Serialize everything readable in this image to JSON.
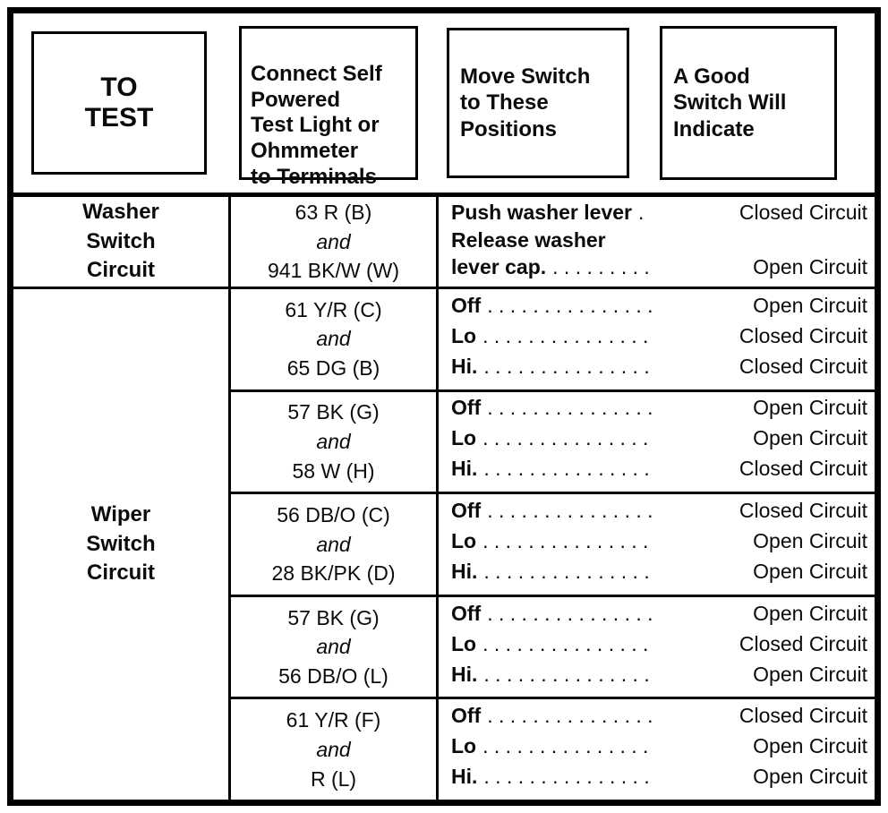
{
  "headers": {
    "to_test": "TO\nTEST",
    "terminals": "Connect Self\nPowered\nTest Light or\nOhmmeter\nto Terminals",
    "positions": "Move Switch\nto These\nPositions",
    "indicate": "A Good\nSwitch Will\nIndicate"
  },
  "washer": {
    "label": "Washer\nSwitch\nCircuit",
    "terminals": [
      "63 R (B)",
      "and",
      "941 BK/W (W)"
    ],
    "lines": [
      {
        "label": "Push washer lever",
        "dots": " . ",
        "result": "Closed Circuit"
      },
      {
        "label": "Release washer",
        "dots": "",
        "result": ""
      },
      {
        "label": "lever cap.",
        "dots": " . . . . . . . . . ",
        "result": "Open Circuit"
      }
    ]
  },
  "wiper": {
    "label": "Wiper\nSwitch\nCircuit",
    "subrows": [
      {
        "terminals": [
          "61 Y/R (C)",
          "and",
          "65 DG (B)"
        ],
        "lines": [
          {
            "label": "Off",
            "dots": " . . . . . . . . . . . . . . . ",
            "result": "Open Circuit"
          },
          {
            "label": "Lo",
            "dots": " . . . . . . . . . . . . . . . ",
            "result": "Closed Circuit"
          },
          {
            "label": "Hi.",
            "dots": " . . . . . . . . . . . . . . . ",
            "result": "Closed Circuit"
          }
        ]
      },
      {
        "terminals": [
          "57 BK (G)",
          "and",
          "58 W (H)"
        ],
        "lines": [
          {
            "label": "Off",
            "dots": " . . . . . . . . . . . . . . . ",
            "result": "Open Circuit"
          },
          {
            "label": "Lo",
            "dots": " . . . . . . . . . . . . . . . ",
            "result": "Open Circuit"
          },
          {
            "label": "Hi.",
            "dots": " . . . . . . . . . . . . . . . ",
            "result": "Closed Circuit"
          }
        ]
      },
      {
        "terminals": [
          "56 DB/O (C)",
          "and",
          "28 BK/PK (D)"
        ],
        "lines": [
          {
            "label": "Off",
            "dots": " . . . . . . . . . . . . . . . ",
            "result": "Closed Circuit"
          },
          {
            "label": "Lo",
            "dots": " . . . . . . . . . . . . . . . ",
            "result": "Open Circuit"
          },
          {
            "label": "Hi.",
            "dots": " . . . . . . . . . . . . . . . ",
            "result": "Open Circuit"
          }
        ]
      },
      {
        "terminals": [
          "57 BK (G)",
          "and",
          "56 DB/O (L)"
        ],
        "lines": [
          {
            "label": "Off",
            "dots": " . . . . . . . . . . . . . . . ",
            "result": "Open Circuit"
          },
          {
            "label": "Lo",
            "dots": " . . . . . . . . . . . . . . . ",
            "result": "Closed Circuit"
          },
          {
            "label": "Hi.",
            "dots": " . . . . . . . . . . . . . . . ",
            "result": "Open Circuit"
          }
        ]
      },
      {
        "terminals": [
          "61 Y/R (F)",
          "and",
          "R (L)"
        ],
        "lines": [
          {
            "label": "Off",
            "dots": " . . . . . . . . . . . . . . . ",
            "result": "Closed Circuit"
          },
          {
            "label": "Lo",
            "dots": " . . . . . . . . . . . . . . . ",
            "result": "Open Circuit"
          },
          {
            "label": "Hi.",
            "dots": " . . . . . . . . . . . . . . . ",
            "result": "Open Circuit"
          }
        ]
      }
    ]
  }
}
